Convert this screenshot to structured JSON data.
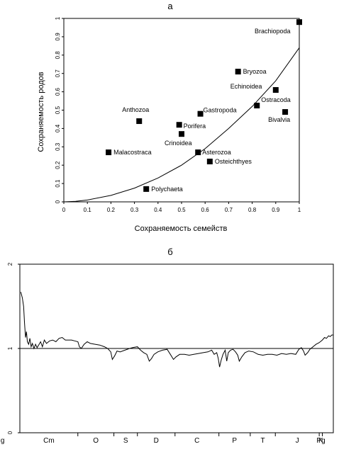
{
  "chart_data": [
    {
      "type": "scatter",
      "title": "а",
      "xlabel": "Сохраняемость семейств",
      "ylabel": "Сохраняемость родов",
      "xlim": [
        0,
        1
      ],
      "ylim": [
        0,
        1
      ],
      "xticks": [
        "0",
        "0.1",
        "0.2",
        "0.3",
        "0.4",
        "0.5",
        "0.6",
        "0.7",
        "0.8",
        "0.9",
        "1"
      ],
      "yticks": [
        "0",
        "0.1",
        "0.2",
        "0.3",
        "0.4",
        "0.5",
        "0.6",
        "0.7",
        "0.8",
        "0.9",
        "1"
      ],
      "points": [
        {
          "label": "Brachiopoda",
          "x": 1.0,
          "y": 0.98
        },
        {
          "label": "Bryozoa",
          "x": 0.74,
          "y": 0.71
        },
        {
          "label": "Echinoidea",
          "x": 0.9,
          "y": 0.61
        },
        {
          "label": "Ostracoda",
          "x": 0.82,
          "y": 0.525
        },
        {
          "label": "Bivalvia",
          "x": 0.94,
          "y": 0.49
        },
        {
          "label": "Anthozoa",
          "x": 0.32,
          "y": 0.44
        },
        {
          "label": "Gastropoda",
          "x": 0.58,
          "y": 0.48
        },
        {
          "label": "Porifera",
          "x": 0.49,
          "y": 0.42
        },
        {
          "label": "Crinoidea",
          "x": 0.5,
          "y": 0.37
        },
        {
          "label": "Malacostraca",
          "x": 0.19,
          "y": 0.27
        },
        {
          "label": "Asterozoa",
          "x": 0.57,
          "y": 0.27
        },
        {
          "label": "Osteichthyes",
          "x": 0.62,
          "y": 0.22
        },
        {
          "label": "Polychaeta",
          "x": 0.35,
          "y": 0.07
        }
      ],
      "curve": [
        [
          0,
          0
        ],
        [
          0.05,
          0.003
        ],
        [
          0.1,
          0.01
        ],
        [
          0.2,
          0.035
        ],
        [
          0.3,
          0.075
        ],
        [
          0.4,
          0.13
        ],
        [
          0.5,
          0.2
        ],
        [
          0.6,
          0.29
        ],
        [
          0.7,
          0.4
        ],
        [
          0.8,
          0.52
        ],
        [
          0.9,
          0.66
        ],
        [
          1.0,
          0.84
        ]
      ]
    },
    {
      "type": "line",
      "title": "б",
      "ylim": [
        0,
        2
      ],
      "yticks": [
        "0",
        "1",
        "2"
      ],
      "reference_line": 1,
      "periods": [
        "Cm",
        "O",
        "S",
        "D",
        "C",
        "P",
        "T",
        "J",
        "K",
        "Pg",
        "Ng"
      ],
      "period_bounds": [
        0,
        0.185,
        0.3,
        0.375,
        0.495,
        0.635,
        0.735,
        0.815,
        0.955,
        0.965,
        1.0
      ],
      "x_range": [
        0,
        1
      ],
      "series_points": [
        [
          0.003,
          1.67
        ],
        [
          0.008,
          1.6
        ],
        [
          0.012,
          1.5
        ],
        [
          0.015,
          1.3
        ],
        [
          0.018,
          1.13
        ],
        [
          0.021,
          1.2
        ],
        [
          0.024,
          1.08
        ],
        [
          0.028,
          1.05
        ],
        [
          0.032,
          1.12
        ],
        [
          0.036,
          1.02
        ],
        [
          0.04,
          1.06
        ],
        [
          0.045,
          1.0
        ],
        [
          0.05,
          1.05
        ],
        [
          0.055,
          1.01
        ],
        [
          0.06,
          1.04
        ],
        [
          0.066,
          1.08
        ],
        [
          0.072,
          1.02
        ],
        [
          0.078,
          1.1
        ],
        [
          0.085,
          1.06
        ],
        [
          0.095,
          1.09
        ],
        [
          0.105,
          1.1
        ],
        [
          0.115,
          1.08
        ],
        [
          0.125,
          1.12
        ],
        [
          0.135,
          1.13
        ],
        [
          0.145,
          1.1
        ],
        [
          0.155,
          1.1
        ],
        [
          0.165,
          1.1
        ],
        [
          0.175,
          1.09
        ],
        [
          0.185,
          1.08
        ],
        [
          0.19,
          1.02
        ],
        [
          0.196,
          1.0
        ],
        [
          0.205,
          1.05
        ],
        [
          0.215,
          1.08
        ],
        [
          0.225,
          1.06
        ],
        [
          0.24,
          1.05
        ],
        [
          0.255,
          1.04
        ],
        [
          0.27,
          1.02
        ],
        [
          0.28,
          1.0
        ],
        [
          0.29,
          0.96
        ],
        [
          0.295,
          0.87
        ],
        [
          0.302,
          0.91
        ],
        [
          0.31,
          0.97
        ],
        [
          0.32,
          0.96
        ],
        [
          0.335,
          0.98
        ],
        [
          0.35,
          1.0
        ],
        [
          0.36,
          1.01
        ],
        [
          0.375,
          1.02
        ],
        [
          0.385,
          0.98
        ],
        [
          0.395,
          0.95
        ],
        [
          0.405,
          0.93
        ],
        [
          0.413,
          0.85
        ],
        [
          0.42,
          0.88
        ],
        [
          0.428,
          0.93
        ],
        [
          0.44,
          0.96
        ],
        [
          0.455,
          0.98
        ],
        [
          0.47,
          0.99
        ],
        [
          0.48,
          0.93
        ],
        [
          0.49,
          0.87
        ],
        [
          0.498,
          0.9
        ],
        [
          0.51,
          0.93
        ],
        [
          0.525,
          0.93
        ],
        [
          0.54,
          0.92
        ],
        [
          0.555,
          0.93
        ],
        [
          0.57,
          0.94
        ],
        [
          0.585,
          0.95
        ],
        [
          0.6,
          0.96
        ],
        [
          0.612,
          0.98
        ],
        [
          0.62,
          0.93
        ],
        [
          0.628,
          0.95
        ],
        [
          0.633,
          0.88
        ],
        [
          0.637,
          0.78
        ],
        [
          0.642,
          0.86
        ],
        [
          0.648,
          0.93
        ],
        [
          0.655,
          0.98
        ],
        [
          0.66,
          0.85
        ],
        [
          0.665,
          0.95
        ],
        [
          0.672,
          0.98
        ],
        [
          0.68,
          0.99
        ],
        [
          0.688,
          0.96
        ],
        [
          0.695,
          0.92
        ],
        [
          0.7,
          0.85
        ],
        [
          0.708,
          0.9
        ],
        [
          0.718,
          0.95
        ],
        [
          0.73,
          0.97
        ],
        [
          0.745,
          0.96
        ],
        [
          0.76,
          0.93
        ],
        [
          0.775,
          0.92
        ],
        [
          0.79,
          0.93
        ],
        [
          0.805,
          0.93
        ],
        [
          0.82,
          0.92
        ],
        [
          0.835,
          0.94
        ],
        [
          0.85,
          0.93
        ],
        [
          0.865,
          0.94
        ],
        [
          0.88,
          0.93
        ],
        [
          0.89,
          0.99
        ],
        [
          0.898,
          1.01
        ],
        [
          0.905,
          0.97
        ],
        [
          0.91,
          0.92
        ],
        [
          0.918,
          0.95
        ],
        [
          0.925,
          0.99
        ],
        [
          0.935,
          1.02
        ],
        [
          0.945,
          1.05
        ],
        [
          0.955,
          1.07
        ],
        [
          0.965,
          1.1
        ],
        [
          0.972,
          1.13
        ],
        [
          0.978,
          1.12
        ],
        [
          0.985,
          1.15
        ],
        [
          0.99,
          1.14
        ],
        [
          0.995,
          1.16
        ],
        [
          1.0,
          1.16
        ]
      ]
    }
  ]
}
